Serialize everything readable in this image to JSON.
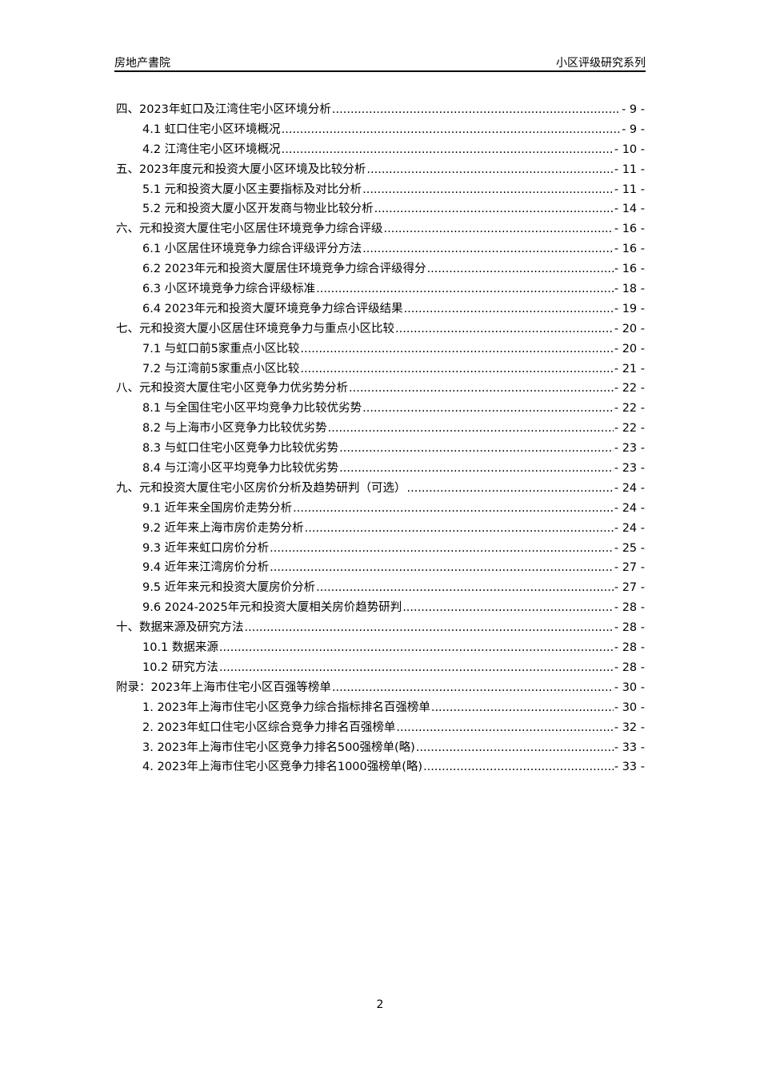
{
  "header": {
    "left": "房地产書院",
    "right": "小区评级研究系列"
  },
  "toc": [
    {
      "level": 1,
      "title": "四、2023年虹口及江湾住宅小区环境分析",
      "page": "- 9 -"
    },
    {
      "level": 2,
      "title": "4.1 虹口住宅小区环境概况",
      "page": "- 9 -"
    },
    {
      "level": 2,
      "title": "4.2 江湾住宅小区环境概况",
      "page": "- 10 -"
    },
    {
      "level": 1,
      "title": "五、2023年度元和投资大厦小区环境及比较分析",
      "page": "- 11 -"
    },
    {
      "level": 2,
      "title": "5.1 元和投资大厦小区主要指标及对比分析",
      "page": "- 11 -"
    },
    {
      "level": 2,
      "title": "5.2 元和投资大厦小区开发商与物业比较分析",
      "page": "- 14 -"
    },
    {
      "level": 1,
      "title": "六、元和投资大厦住宅小区居住环境竞争力综合评级",
      "page": "- 16 -"
    },
    {
      "level": 2,
      "title": "6.1 小区居住环境竞争力综合评级评分方法",
      "page": "- 16 -"
    },
    {
      "level": 2,
      "title": "6.2 2023年元和投资大厦居住环境竞争力综合评级得分",
      "page": "- 16 -"
    },
    {
      "level": 2,
      "title": "6.3 小区环境竞争力综合评级标准",
      "page": "- 18 -"
    },
    {
      "level": 2,
      "title": "6.4 2023年元和投资大厦环境竞争力综合评级结果",
      "page": "- 19 -"
    },
    {
      "level": 1,
      "title": "七、元和投资大厦小区居住环境竞争力与重点小区比较",
      "page": "- 20 -"
    },
    {
      "level": 2,
      "title": "7.1 与虹口前5家重点小区比较",
      "page": "- 20 -"
    },
    {
      "level": 2,
      "title": "7.2 与江湾前5家重点小区比较",
      "page": "- 21 -"
    },
    {
      "level": 1,
      "title": "八、元和投资大厦住宅小区竞争力优劣势分析",
      "page": "- 22 -"
    },
    {
      "level": 2,
      "title": "8.1 与全国住宅小区平均竞争力比较优劣势",
      "page": "- 22 -"
    },
    {
      "level": 2,
      "title": "8.2 与上海市小区竞争力比较优劣势",
      "page": "- 22 -"
    },
    {
      "level": 2,
      "title": "8.3 与虹口住宅小区竞争力比较优劣势",
      "page": "- 23 -"
    },
    {
      "level": 2,
      "title": "8.4 与江湾小区平均竞争力比较优劣势",
      "page": "- 23 -"
    },
    {
      "level": 1,
      "title": "九、元和投资大厦住宅小区房价分析及趋势研判（可选）",
      "page": "- 24 -"
    },
    {
      "level": 2,
      "title": "9.1 近年来全国房价走势分析",
      "page": "- 24 -"
    },
    {
      "level": 2,
      "title": "9.2 近年来上海市房价走势分析",
      "page": "- 24 -"
    },
    {
      "level": 2,
      "title": "9.3 近年来虹口房价分析",
      "page": "- 25 -"
    },
    {
      "level": 2,
      "title": "9.4 近年来江湾房价分析",
      "page": "- 27 -"
    },
    {
      "level": 2,
      "title": "9.5 近年来元和投资大厦房价分析",
      "page": "- 27 -"
    },
    {
      "level": 2,
      "title": "9.6 2024-2025年元和投资大厦相关房价趋势研判",
      "page": "- 28 -"
    },
    {
      "level": 1,
      "title": "十、数据来源及研究方法",
      "page": "- 28 -"
    },
    {
      "level": 2,
      "title": "10.1 数据来源",
      "page": "- 28 -"
    },
    {
      "level": 2,
      "title": "10.2 研究方法",
      "page": "- 28 -"
    },
    {
      "level": 1,
      "title": "附录：2023年上海市住宅小区百强等榜单",
      "page": "- 30 -"
    },
    {
      "level": 2,
      "title": "1.  2023年上海市住宅小区竞争力综合指标排名百强榜单",
      "page": "- 30 -"
    },
    {
      "level": 2,
      "title": "2.  2023年虹口住宅小区综合竞争力排名百强榜单",
      "page": "- 32 -"
    },
    {
      "level": 2,
      "title": "3.  2023年上海市住宅小区竞争力排名500强榜单(略)",
      "page": "- 33 -"
    },
    {
      "level": 2,
      "title": "4.  2023年上海市住宅小区竞争力排名1000强榜单(略)",
      "page": "- 33 -"
    }
  ],
  "page_number": "2"
}
